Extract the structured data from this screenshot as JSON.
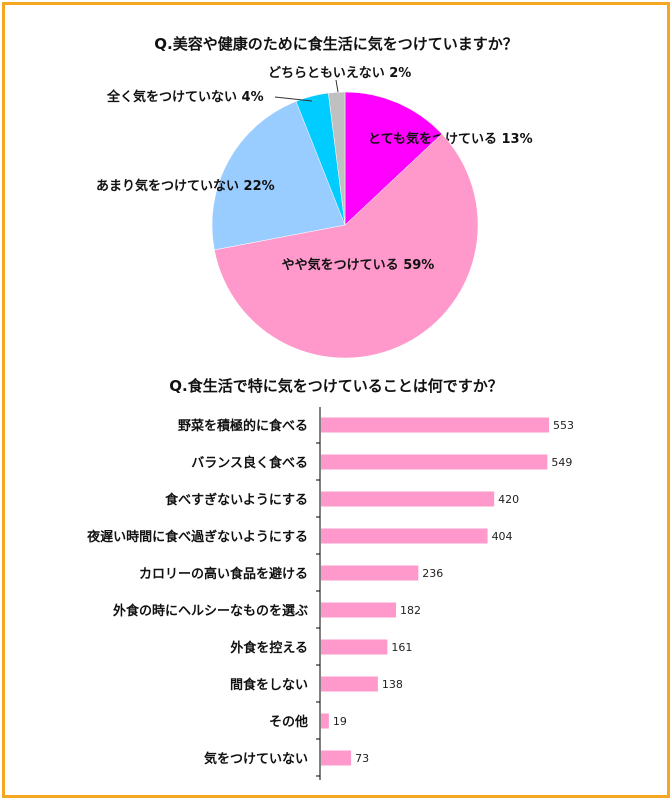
{
  "chart_data": [
    {
      "type": "pie",
      "title": "Q.美容や健康のために食生活に気をつけていますか？",
      "slices": [
        {
          "label": "とても気をつけている",
          "value": 13,
          "value_text": "13%",
          "color": "#ff00ff"
        },
        {
          "label": "やや気をつけている",
          "value": 59,
          "value_text": "59%",
          "color": "#ff99cc"
        },
        {
          "label": "あまり気をつけていない",
          "value": 22,
          "value_text": "22%",
          "color": "#99ccff"
        },
        {
          "label": "全く気をつけていない",
          "value": 4,
          "value_text": "4%",
          "color": "#00ccff"
        },
        {
          "label": "どちらともいえない",
          "value": 2,
          "value_text": "2%",
          "color": "#c0c0c0"
        }
      ]
    },
    {
      "type": "bar",
      "orientation": "horizontal",
      "title": "Q.食生活で特に気をつけていることは何ですか？",
      "bar_color": "#ff99cc",
      "categories": [
        "野菜を積極的に食べる",
        "バランス良く食べる",
        "食べすぎないようにする",
        "夜遅い時間に食べ過ぎないようにする",
        "カロリーの高い食品を避ける",
        "外食の時にヘルシーなものを選ぶ",
        "外食を控える",
        "間食をしない",
        "その他",
        "気をつけていない"
      ],
      "values": [
        553,
        549,
        420,
        404,
        236,
        182,
        161,
        138,
        19,
        73
      ],
      "xlim": [
        0,
        600
      ]
    }
  ]
}
